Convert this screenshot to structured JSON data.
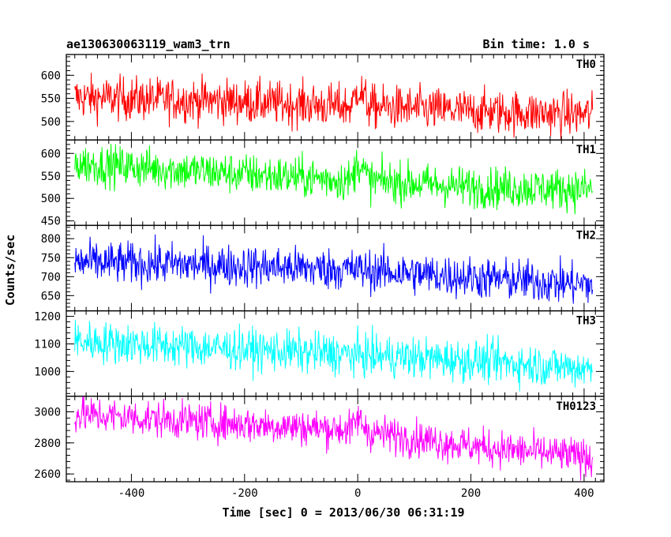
{
  "chart_data": {
    "type": "line",
    "title": "ae130630063119_wam3_trn",
    "bin_label": "Bin time: 1.0 s",
    "xlabel": "Time [sec] 0 = 2013/06/30 06:31:19",
    "ylabel": "Counts/sec",
    "xlim": [
      -515,
      435
    ],
    "xticks": [
      -400,
      -200,
      0,
      200,
      400
    ],
    "x_start": -500,
    "x_end": 415,
    "x_step": 1,
    "series": [
      {
        "name": "TH0",
        "color": "#ff0000",
        "ylim": [
          460,
          645
        ],
        "yticks": [
          500,
          550,
          600
        ],
        "trend": [
          [
            -500,
            552
          ],
          [
            -250,
            545
          ],
          [
            -10,
            532
          ],
          [
            0,
            575
          ],
          [
            20,
            532
          ],
          [
            200,
            522
          ],
          [
            415,
            515
          ]
        ],
        "noise": 24
      },
      {
        "name": "TH1",
        "color": "#00ff00",
        "ylim": [
          440,
          630
        ],
        "yticks": [
          450,
          500,
          550,
          600
        ],
        "trend": [
          [
            -500,
            578
          ],
          [
            -250,
            558
          ],
          [
            -10,
            540
          ],
          [
            0,
            585
          ],
          [
            20,
            540
          ],
          [
            200,
            525
          ],
          [
            415,
            520
          ]
        ],
        "noise": 23
      },
      {
        "name": "TH2",
        "color": "#0000ff",
        "ylim": [
          610,
          835
        ],
        "yticks": [
          650,
          700,
          750,
          800
        ],
        "trend": [
          [
            -500,
            738
          ],
          [
            -250,
            730
          ],
          [
            0,
            718
          ],
          [
            200,
            698
          ],
          [
            415,
            678
          ]
        ],
        "noise": 28
      },
      {
        "name": "TH3",
        "color": "#00ffff",
        "ylim": [
          910,
          1220
        ],
        "yticks": [
          1000,
          1100,
          1200
        ],
        "trend": [
          [
            -500,
            1110
          ],
          [
            -250,
            1085
          ],
          [
            0,
            1060
          ],
          [
            200,
            1040
          ],
          [
            415,
            1010
          ]
        ],
        "noise": 38
      },
      {
        "name": "TH0123",
        "color": "#ff00ff",
        "ylim": [
          2550,
          3100
        ],
        "yticks": [
          2600,
          2800,
          3000
        ],
        "trend": [
          [
            -500,
            2985
          ],
          [
            -250,
            2930
          ],
          [
            -10,
            2885
          ],
          [
            0,
            2960
          ],
          [
            20,
            2870
          ],
          [
            200,
            2780
          ],
          [
            415,
            2705
          ]
        ],
        "noise": 60
      }
    ]
  }
}
